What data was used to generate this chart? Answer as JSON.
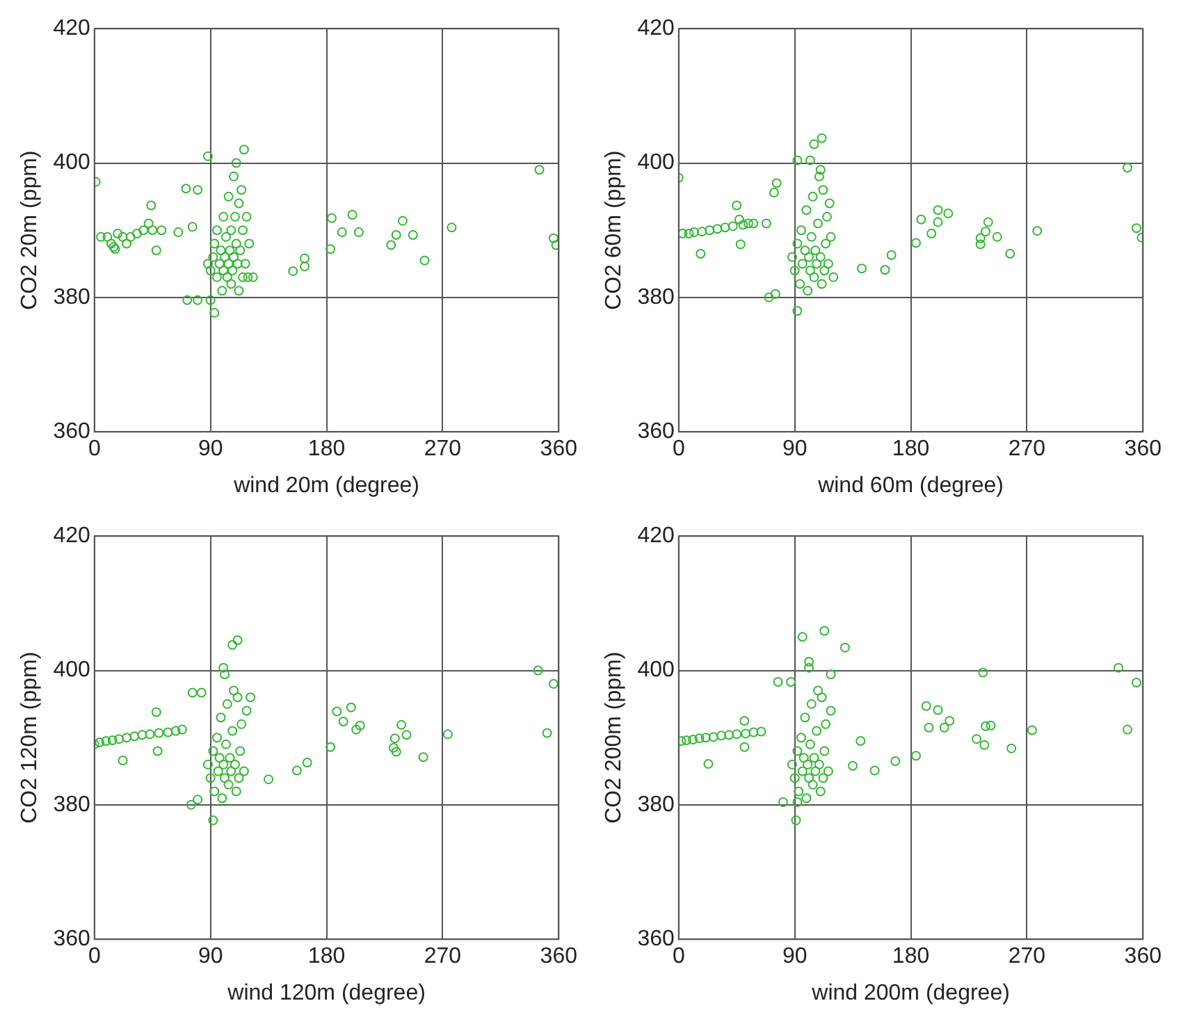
{
  "chart_data": [
    {
      "type": "scatter",
      "xlabel": "wind 20m (degree)",
      "ylabel": "CO2 20m (ppm)",
      "xlim": [
        0,
        360
      ],
      "xticks": [
        0,
        90,
        180,
        270,
        360
      ],
      "ylim": [
        360,
        420
      ],
      "yticks": [
        360,
        380,
        400,
        420
      ],
      "grid": true,
      "marker": "circle",
      "series": [
        {
          "color": "#33b833",
          "x": [
            1,
            5,
            10,
            13,
            18,
            22,
            28,
            33,
            38,
            42,
            45,
            52,
            15,
            25,
            16,
            44,
            48,
            65,
            76,
            71,
            80,
            88,
            72,
            80,
            90,
            93,
            88,
            90,
            92,
            93,
            95,
            95,
            97,
            98,
            99,
            100,
            100,
            101,
            102,
            103,
            104,
            104,
            105,
            106,
            106,
            107,
            108,
            108,
            109,
            110,
            110,
            111,
            112,
            112,
            113,
            114,
            115,
            115,
            116,
            117,
            118,
            119,
            123,
            120,
            184,
            200,
            192,
            205,
            183,
            163,
            154,
            163,
            239,
            234,
            230,
            247,
            256,
            277,
            345,
            356,
            358
          ],
          "values": [
            397.2,
            389,
            389,
            388,
            389.5,
            389,
            389,
            389.5,
            390,
            391,
            390,
            390,
            387.5,
            388,
            387.2,
            393.7,
            387,
            389.7,
            390.5,
            396.2,
            396,
            401,
            379.6,
            379.6,
            379.6,
            377.7,
            385,
            384,
            386,
            388,
            383,
            390,
            385,
            387,
            381,
            384,
            392,
            386,
            389,
            383,
            385,
            395,
            387,
            390,
            382,
            384,
            398,
            386,
            392,
            400,
            388,
            385,
            394,
            381,
            387,
            396,
            390,
            383,
            402,
            385,
            392,
            383,
            383,
            388,
            391.8,
            392.3,
            389.7,
            389.7,
            387.2,
            385.8,
            383.9,
            384.6,
            391.4,
            389.3,
            387.8,
            389.3,
            385.5,
            390.4,
            399,
            388.8,
            387.8
          ]
        }
      ]
    },
    {
      "type": "scatter",
      "xlabel": "wind 60m (degree)",
      "ylabel": "CO2 60m (ppm)",
      "xlim": [
        0,
        360
      ],
      "xticks": [
        0,
        90,
        180,
        270,
        360
      ],
      "ylim": [
        360,
        420
      ],
      "yticks": [
        360,
        380,
        400,
        420
      ],
      "grid": true,
      "marker": "circle",
      "series": [
        {
          "color": "#33b833",
          "x": [
            0,
            3,
            8,
            12,
            18,
            24,
            30,
            36,
            42,
            50,
            54,
            17,
            45,
            47,
            48,
            58,
            68,
            74,
            76,
            70,
            75,
            92,
            105,
            111,
            92,
            102,
            110,
            88,
            90,
            92,
            94,
            95,
            96,
            98,
            99,
            100,
            101,
            102,
            103,
            104,
            105,
            106,
            107,
            108,
            109,
            110,
            111,
            112,
            113,
            114,
            115,
            116,
            117,
            118,
            120,
            188,
            201,
            209,
            201,
            196,
            184,
            165,
            160,
            142,
            240,
            238,
            234,
            234,
            247,
            257,
            278,
            348,
            355,
            359
          ],
          "values": [
            397.8,
            389.5,
            389.5,
            389.7,
            389.8,
            390,
            390.2,
            390.4,
            390.6,
            390.8,
            391,
            386.5,
            393.7,
            391.6,
            387.9,
            391,
            391,
            395.6,
            397,
            380,
            380.5,
            378,
            402.8,
            403.7,
            400.4,
            400.4,
            399,
            386,
            384,
            388,
            382,
            390,
            385,
            387,
            393,
            381,
            386,
            384,
            389,
            395,
            383,
            387,
            385,
            391,
            398,
            386,
            382,
            396,
            384,
            388,
            392,
            385,
            394,
            389,
            383,
            391.6,
            393,
            392.5,
            391.2,
            389.5,
            388.1,
            386.3,
            384.1,
            384.3,
            391.2,
            389.8,
            388.8,
            387.9,
            389,
            386.5,
            389.9,
            399.3,
            390.3,
            388.9
          ]
        }
      ]
    },
    {
      "type": "scatter",
      "xlabel": "wind 120m (degree)",
      "ylabel": "CO2 120m (ppm)",
      "xlim": [
        0,
        360
      ],
      "xticks": [
        0,
        90,
        180,
        270,
        360
      ],
      "ylim": [
        360,
        420
      ],
      "yticks": [
        360,
        380,
        400,
        420
      ],
      "grid": true,
      "marker": "circle",
      "series": [
        {
          "color": "#33b833",
          "x": [
            0,
            4,
            9,
            14,
            19,
            25,
            31,
            37,
            43,
            50,
            57,
            63,
            68,
            22,
            49,
            48,
            76,
            83,
            75,
            80,
            92,
            107,
            111,
            100,
            101,
            121,
            88,
            90,
            92,
            93,
            95,
            96,
            97,
            98,
            99,
            100,
            101,
            102,
            103,
            104,
            105,
            106,
            107,
            108,
            109,
            110,
            111,
            112,
            113,
            114,
            116,
            118,
            188,
            199,
            193,
            206,
            203,
            183,
            165,
            157,
            135,
            238,
            233,
            242,
            232,
            234,
            255,
            274,
            344,
            356,
            351
          ],
          "values": [
            389,
            389.3,
            389.5,
            389.6,
            389.8,
            390,
            390.2,
            390.4,
            390.5,
            390.7,
            390.8,
            391,
            391.2,
            386.6,
            388,
            393.8,
            396.7,
            396.7,
            380,
            380.8,
            377.7,
            403.8,
            404.5,
            400.4,
            399.4,
            396,
            386,
            384,
            388,
            382,
            390,
            385,
            387,
            393,
            381,
            386,
            384,
            389,
            395,
            383,
            387,
            385,
            391,
            397,
            386,
            382,
            396,
            384,
            388,
            392,
            385,
            394,
            393.9,
            394.5,
            392.4,
            391.8,
            391.2,
            388.6,
            386.3,
            385.1,
            383.8,
            391.9,
            389.9,
            390.4,
            388.5,
            387.9,
            387.1,
            390.5,
            400,
            398,
            390.7
          ]
        }
      ]
    },
    {
      "type": "scatter",
      "xlabel": "wind 200m (degree)",
      "ylabel": "CO2 200m (ppm)",
      "xlim": [
        0,
        360
      ],
      "xticks": [
        0,
        90,
        180,
        270,
        360
      ],
      "ylim": [
        360,
        420
      ],
      "yticks": [
        360,
        380,
        400,
        420
      ],
      "grid": true,
      "marker": "circle",
      "series": [
        {
          "color": "#33b833",
          "x": [
            2,
            6,
            11,
            16,
            21,
            27,
            33,
            39,
            45,
            52,
            58,
            64,
            23,
            51,
            51,
            81,
            92,
            91,
            96,
            113,
            129,
            101,
            101,
            118,
            77,
            87,
            88,
            90,
            92,
            93,
            95,
            96,
            97,
            98,
            99,
            100,
            101,
            102,
            103,
            104,
            105,
            106,
            107,
            108,
            109,
            110,
            111,
            112,
            113,
            114,
            116,
            118,
            141,
            135,
            152,
            168,
            184,
            192,
            201,
            210,
            206,
            194,
            236,
            238,
            242,
            231,
            237,
            258,
            274,
            341,
            355,
            348
          ],
          "values": [
            389.5,
            389.6,
            389.7,
            389.9,
            390,
            390.1,
            390.3,
            390.4,
            390.5,
            390.6,
            390.8,
            390.9,
            386.1,
            388.6,
            392.5,
            380.4,
            380.4,
            377.7,
            405,
            405.9,
            403.4,
            401.3,
            400.4,
            399.4,
            398.3,
            398.3,
            386,
            384,
            388,
            382,
            390,
            385,
            387,
            393,
            381,
            386,
            384,
            389,
            395,
            383,
            387,
            385,
            391,
            397,
            386,
            382,
            396,
            384,
            388,
            392,
            385,
            394,
            389.5,
            385.8,
            385.1,
            386.5,
            387.3,
            394.7,
            394.1,
            392.5,
            391.5,
            391.5,
            399.7,
            391.7,
            391.8,
            389.8,
            388.9,
            388.4,
            391.1,
            400.4,
            398.2,
            391.2
          ]
        }
      ]
    }
  ]
}
